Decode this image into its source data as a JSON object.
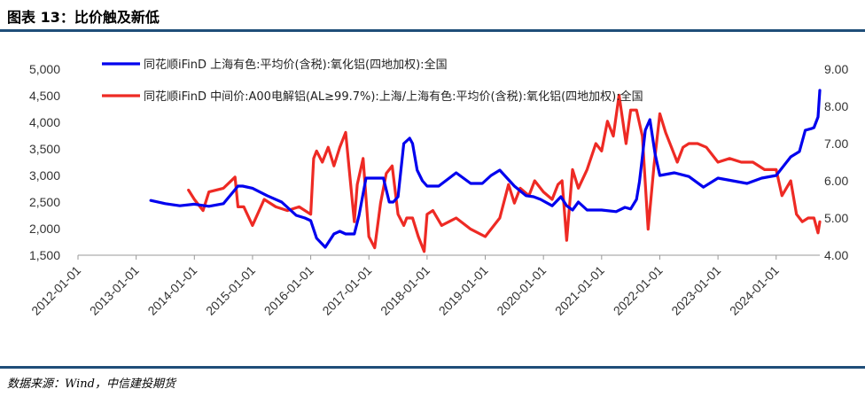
{
  "header": {
    "title": "图表 13：比价触及新低"
  },
  "footer": {
    "source": "数据来源：Wind，中信建投期货"
  },
  "chart_data": {
    "type": "line",
    "title": "",
    "y_left": {
      "ticks": [
        "1,500",
        "2,000",
        "2,500",
        "3,000",
        "3,500",
        "4,000",
        "4,500",
        "5,000"
      ],
      "range": [
        1500,
        5000
      ]
    },
    "y_right": {
      "ticks": [
        "4.00",
        "5.00",
        "6.00",
        "7.00",
        "8.00",
        "9.00"
      ],
      "range": [
        4.0,
        9.0
      ]
    },
    "x_ticks": [
      "2012-01-01",
      "2013-01-01",
      "2014-01-01",
      "2015-01-01",
      "2016-01-01",
      "2017-01-01",
      "2018-01-01",
      "2019-01-01",
      "2020-01-01",
      "2021-01-01",
      "2022-01-01",
      "2023-01-01",
      "2024-01-01"
    ],
    "x_range": [
      2012.0,
      2024.75
    ],
    "legend_position": "top",
    "series": [
      {
        "name": "同花顺iFinD 上海有色:平均价(含税):氧化铝(四地加权):全国",
        "axis": "left",
        "color": "#0000ee",
        "x": [
          2013.25,
          2013.5,
          2013.75,
          2014.0,
          2014.25,
          2014.5,
          2014.75,
          2014.83,
          2015.0,
          2015.25,
          2015.5,
          2015.75,
          2015.9,
          2016.0,
          2016.1,
          2016.25,
          2016.4,
          2016.5,
          2016.6,
          2016.75,
          2016.83,
          2016.95,
          2017.25,
          2017.35,
          2017.42,
          2017.5,
          2017.6,
          2017.7,
          2017.75,
          2017.83,
          2017.92,
          2018.0,
          2018.2,
          2018.5,
          2018.75,
          2018.95,
          2019.1,
          2019.25,
          2019.5,
          2019.7,
          2019.83,
          2019.95,
          2020.15,
          2020.3,
          2020.4,
          2020.5,
          2020.6,
          2020.75,
          2021.0,
          2021.25,
          2021.4,
          2021.5,
          2021.6,
          2021.65,
          2021.7,
          2021.75,
          2021.83,
          2021.92,
          2022.0,
          2022.25,
          2022.5,
          2022.75,
          2023.0,
          2023.25,
          2023.5,
          2023.75,
          2024.0,
          2024.25,
          2024.4,
          2024.5,
          2024.6,
          2024.65,
          2024.72,
          2024.75
        ],
        "values": [
          2530,
          2470,
          2430,
          2460,
          2420,
          2470,
          2800,
          2800,
          2760,
          2620,
          2500,
          2250,
          2200,
          2150,
          1820,
          1650,
          1900,
          1950,
          1900,
          1900,
          2250,
          2950,
          2950,
          2500,
          2500,
          2600,
          3600,
          3700,
          3600,
          3100,
          2900,
          2800,
          2800,
          3050,
          2850,
          2850,
          3000,
          3100,
          2800,
          2620,
          2600,
          2550,
          2430,
          2600,
          2430,
          2350,
          2500,
          2350,
          2350,
          2320,
          2400,
          2370,
          2550,
          2880,
          3350,
          3850,
          4050,
          3400,
          3000,
          3050,
          2980,
          2780,
          2950,
          2900,
          2850,
          2950,
          3000,
          3350,
          3450,
          3850,
          3880,
          3900,
          4100,
          4600
        ]
      },
      {
        "name": "同花顺iFinD 中间价:A00电解铝(AL≥99.7%):上海/上海有色:平均价(含税):氧化铝(四地加权):全国",
        "axis": "right",
        "color": "#ee2a24",
        "x": [
          2013.9,
          2014.0,
          2014.15,
          2014.25,
          2014.5,
          2014.7,
          2014.75,
          2014.85,
          2015.0,
          2015.2,
          2015.4,
          2015.6,
          2015.8,
          2016.0,
          2016.05,
          2016.1,
          2016.2,
          2016.3,
          2016.4,
          2016.5,
          2016.6,
          2016.7,
          2016.75,
          2016.8,
          2016.9,
          2017.0,
          2017.1,
          2017.2,
          2017.3,
          2017.4,
          2017.5,
          2017.6,
          2017.65,
          2017.75,
          2017.85,
          2017.95,
          2018.0,
          2018.1,
          2018.25,
          2018.5,
          2018.75,
          2019.0,
          2019.25,
          2019.4,
          2019.5,
          2019.6,
          2019.75,
          2019.85,
          2020.0,
          2020.15,
          2020.25,
          2020.32,
          2020.4,
          2020.5,
          2020.6,
          2020.75,
          2020.9,
          2021.0,
          2021.1,
          2021.2,
          2021.3,
          2021.42,
          2021.5,
          2021.6,
          2021.7,
          2021.8,
          2021.9,
          2022.0,
          2022.1,
          2022.2,
          2022.3,
          2022.4,
          2022.5,
          2022.65,
          2022.8,
          2023.0,
          2023.2,
          2023.4,
          2023.6,
          2023.8,
          2024.0,
          2024.1,
          2024.25,
          2024.35,
          2024.45,
          2024.55,
          2024.65,
          2024.72,
          2024.75
        ],
        "values": [
          5.75,
          5.5,
          5.2,
          5.7,
          5.8,
          6.1,
          5.3,
          5.3,
          4.8,
          5.5,
          5.3,
          5.2,
          5.3,
          5.1,
          6.6,
          6.8,
          6.5,
          6.9,
          6.4,
          6.9,
          7.3,
          5.7,
          4.9,
          5.9,
          6.6,
          4.5,
          4.2,
          5.4,
          6.2,
          6.4,
          5.1,
          4.8,
          5.0,
          5.0,
          4.5,
          4.1,
          5.1,
          5.2,
          4.8,
          5.0,
          4.7,
          4.5,
          5.0,
          5.9,
          5.4,
          5.8,
          5.6,
          6.0,
          5.7,
          5.5,
          5.9,
          6.0,
          4.4,
          6.3,
          5.8,
          6.3,
          7.0,
          6.8,
          7.6,
          7.2,
          8.3,
          7.0,
          7.9,
          7.9,
          7.2,
          4.7,
          6.4,
          7.8,
          7.3,
          6.9,
          6.5,
          6.9,
          7.0,
          7.0,
          6.9,
          6.5,
          6.6,
          6.5,
          6.5,
          6.3,
          6.3,
          5.6,
          6.0,
          5.1,
          4.9,
          5.0,
          5.0,
          4.6,
          4.9
        ]
      }
    ]
  }
}
